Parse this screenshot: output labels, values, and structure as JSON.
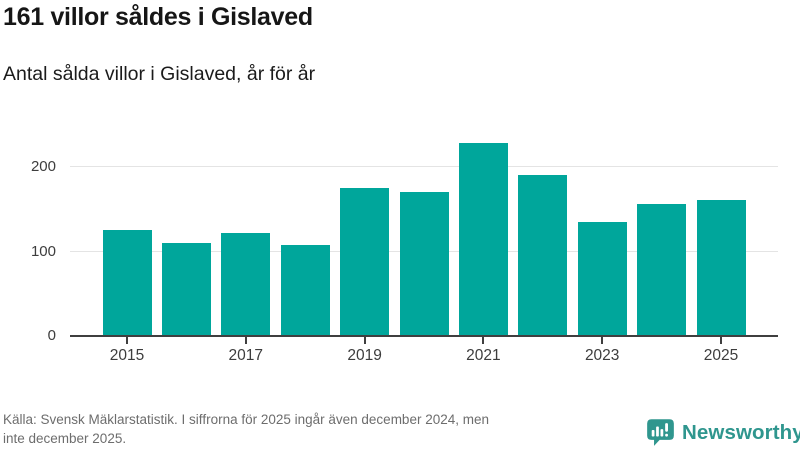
{
  "chart_data": {
    "type": "bar",
    "title": "161 villor såldes i Gislaved",
    "subtitle": "Antal sålda villor i Gislaved, år för år",
    "categories": [
      "2015",
      "2016",
      "2017",
      "2018",
      "2019",
      "2020",
      "2021",
      "2022",
      "2023",
      "2024",
      "2025"
    ],
    "values": [
      126,
      110,
      122,
      108,
      175,
      170,
      228,
      191,
      135,
      156,
      161
    ],
    "xlabel": "",
    "ylabel": "",
    "ylim": [
      0,
      238
    ],
    "y_ticks": [
      0,
      100,
      200
    ],
    "x_tick_labels": [
      "2015",
      "2017",
      "2019",
      "2021",
      "2023",
      "2025"
    ],
    "grid": "horizontal",
    "legend": "none",
    "bar_color": "#00a69b"
  },
  "footer": {
    "source_line1": "Källa: Svensk Mäklarstatistik. I siffrorna för 2025 ingår även december 2024, men",
    "source_line2": "inte december 2025.",
    "brand": "Newsworthy"
  },
  "colors": {
    "bar": "#00a69b",
    "brand_teal": "#2f968e",
    "title_text": "#161616",
    "axis_text": "#3d3d3d",
    "grid_line": "#e4e4e4",
    "axis_line": "#3f3f3f",
    "muted_text": "#6d6d6d"
  }
}
